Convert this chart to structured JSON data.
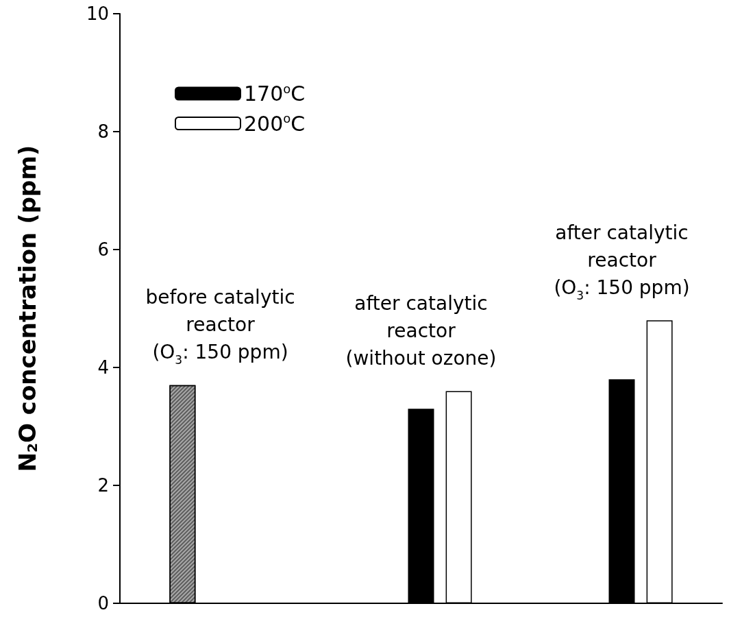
{
  "chart_data": {
    "type": "bar",
    "ylabel": "N$_{2}$O concentration (ppm)",
    "categories": [
      null,
      null,
      null
    ],
    "series": [
      {
        "color": "#a8a8a8",
        "values": [
          3.7,
          null,
          null
        ]
      },
      {
        "name": "170$^{o}$C",
        "color": "#000000",
        "values": [
          null,
          3.3,
          3.8
        ]
      },
      {
        "name": "200$^{o}$C",
        "color": "#ffffff",
        "values": [
          null,
          3.6,
          4.8
        ]
      }
    ],
    "annotations": [
      "before catalytic\nreactor\n(O$_{3}$: 150 ppm)",
      "after catalytic\nreactor\n(without ozone)",
      "after catalytic\nreactor\n(O$_{3}$: 150 ppm)"
    ],
    "ylim": [
      0,
      10
    ],
    "yticks": [
      0,
      2,
      4,
      6,
      8,
      10
    ],
    "grid": false,
    "legend": "top left"
  }
}
